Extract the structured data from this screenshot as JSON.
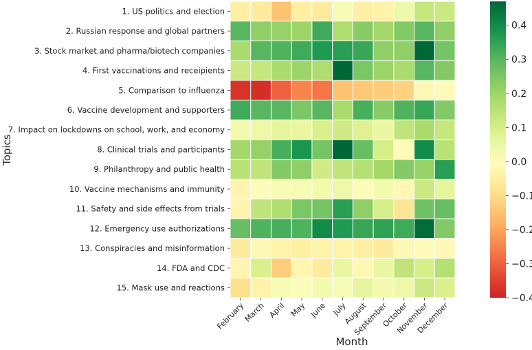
{
  "chart_data": {
    "type": "heatmap",
    "title": "",
    "xlabel": "Month",
    "ylabel": "Topics",
    "x": [
      "February",
      "March",
      "April",
      "May",
      "June",
      "July",
      "August",
      "September",
      "October",
      "November",
      "December"
    ],
    "y": [
      "1. US politics and election",
      "2. Russian response and global partners",
      "3. Stock market and pharma/biotech companies",
      "4. First vaccinations and receipients",
      "5. Comparison to influenza",
      "6. Vaccine development and supporters",
      "7. Impact on lockdowns on school, work, and economy",
      "8. Clinical trials and participants",
      "9. Philanthropy and public health",
      "10. Vaccine mechanisms and immunity",
      "11. Safety and side effects from trials",
      "12. Emergency use authorizations",
      "13. Conspiracies and misinformation",
      "14. FDA and CDC",
      "15. Mask use and reactions"
    ],
    "values": [
      [
        -0.05,
        -0.06,
        -0.15,
        -0.05,
        -0.06,
        0.02,
        -0.05,
        -0.04,
        0.04,
        0.13,
        0.12
      ],
      [
        0.3,
        0.22,
        0.21,
        0.2,
        0.33,
        0.17,
        0.23,
        0.19,
        0.24,
        0.3,
        0.22
      ],
      [
        0.18,
        0.3,
        0.31,
        0.33,
        0.37,
        0.36,
        0.34,
        0.22,
        0.22,
        0.47,
        0.26
      ],
      [
        0.12,
        0.13,
        0.18,
        0.2,
        0.17,
        0.47,
        0.25,
        0.2,
        0.18,
        0.3,
        0.24
      ],
      [
        -0.37,
        -0.38,
        -0.3,
        -0.25,
        -0.27,
        -0.15,
        -0.14,
        -0.13,
        -0.12,
        -0.02,
        -0.01
      ],
      [
        0.33,
        0.3,
        0.3,
        0.25,
        0.3,
        0.18,
        0.32,
        0.23,
        0.31,
        0.34,
        0.24
      ],
      [
        0.03,
        0.04,
        0.06,
        0.05,
        0.09,
        0.11,
        0.08,
        0.05,
        0.14,
        0.18,
        0.13
      ],
      [
        0.19,
        0.21,
        0.32,
        0.38,
        0.26,
        0.47,
        0.28,
        0.1,
        -0.01,
        0.4,
        0.15
      ],
      [
        0.15,
        0.14,
        0.24,
        0.22,
        0.11,
        0.14,
        0.16,
        0.19,
        0.24,
        0.21,
        0.36
      ],
      [
        -0.03,
        0.01,
        0.02,
        0.02,
        0.03,
        0.04,
        0.01,
        0.03,
        -0.02,
        0.12,
        0.06
      ],
      [
        -0.03,
        0.14,
        0.17,
        0.25,
        0.26,
        0.36,
        0.22,
        0.1,
        -0.08,
        0.27,
        0.28
      ],
      [
        0.28,
        0.31,
        0.32,
        0.31,
        0.4,
        0.37,
        0.34,
        0.35,
        0.33,
        0.46,
        0.24
      ],
      [
        -0.06,
        -0.02,
        -0.04,
        -0.05,
        -0.04,
        -0.04,
        -0.05,
        -0.06,
        -0.02,
        -0.01,
        -0.02
      ],
      [
        -0.03,
        0.09,
        -0.13,
        -0.03,
        -0.06,
        0.05,
        -0.02,
        0.05,
        0.14,
        0.1,
        0.16
      ],
      [
        -0.09,
        -0.04,
        0.02,
        0.01,
        0.03,
        0.02,
        0.06,
        0.03,
        0.04,
        0.12,
        0.09
      ]
    ],
    "vmin": -0.4,
    "vmax": 0.47,
    "colormap": "RdYlGn",
    "colorbar_ticks": [
      "0.4",
      "0.3",
      "0.2",
      "0.1",
      "0.0",
      "−0.1",
      "−0.2",
      "−0.3",
      "−0.4"
    ],
    "colorbar_tick_values": [
      0.4,
      0.3,
      0.2,
      0.1,
      0.0,
      -0.1,
      -0.2,
      -0.3,
      -0.4
    ]
  }
}
